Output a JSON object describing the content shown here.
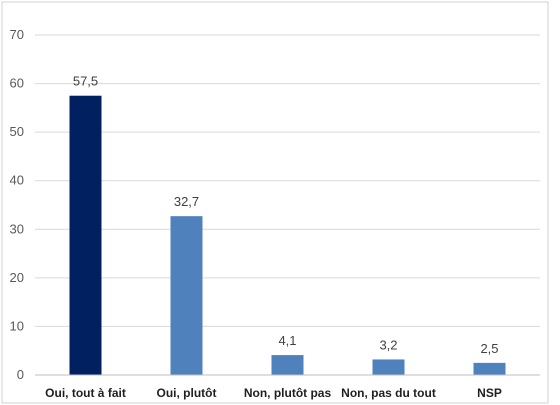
{
  "chart_data": {
    "type": "bar",
    "title": "",
    "xlabel": "",
    "ylabel": "",
    "categories": [
      "Oui, tout à fait",
      "Oui, plutôt",
      "Non, plutôt pas",
      "Non, pas du tout",
      "NSP"
    ],
    "values": [
      57.5,
      32.7,
      4.1,
      3.2,
      2.5
    ],
    "data_labels": [
      "57,5",
      "32,7",
      "4,1",
      "3,2",
      "2,5"
    ],
    "ylim": [
      0,
      70
    ],
    "yticks": [
      "0",
      "10",
      "20",
      "30",
      "40",
      "50",
      "60",
      "70"
    ],
    "grid": true,
    "legend": "none",
    "colors": {
      "highlight": "#002060",
      "default": "#4f81bd",
      "grid": "#d9d9d9",
      "axis": "#bfbfbf",
      "border": "#d0d0d0"
    },
    "highlight_index": 0
  }
}
